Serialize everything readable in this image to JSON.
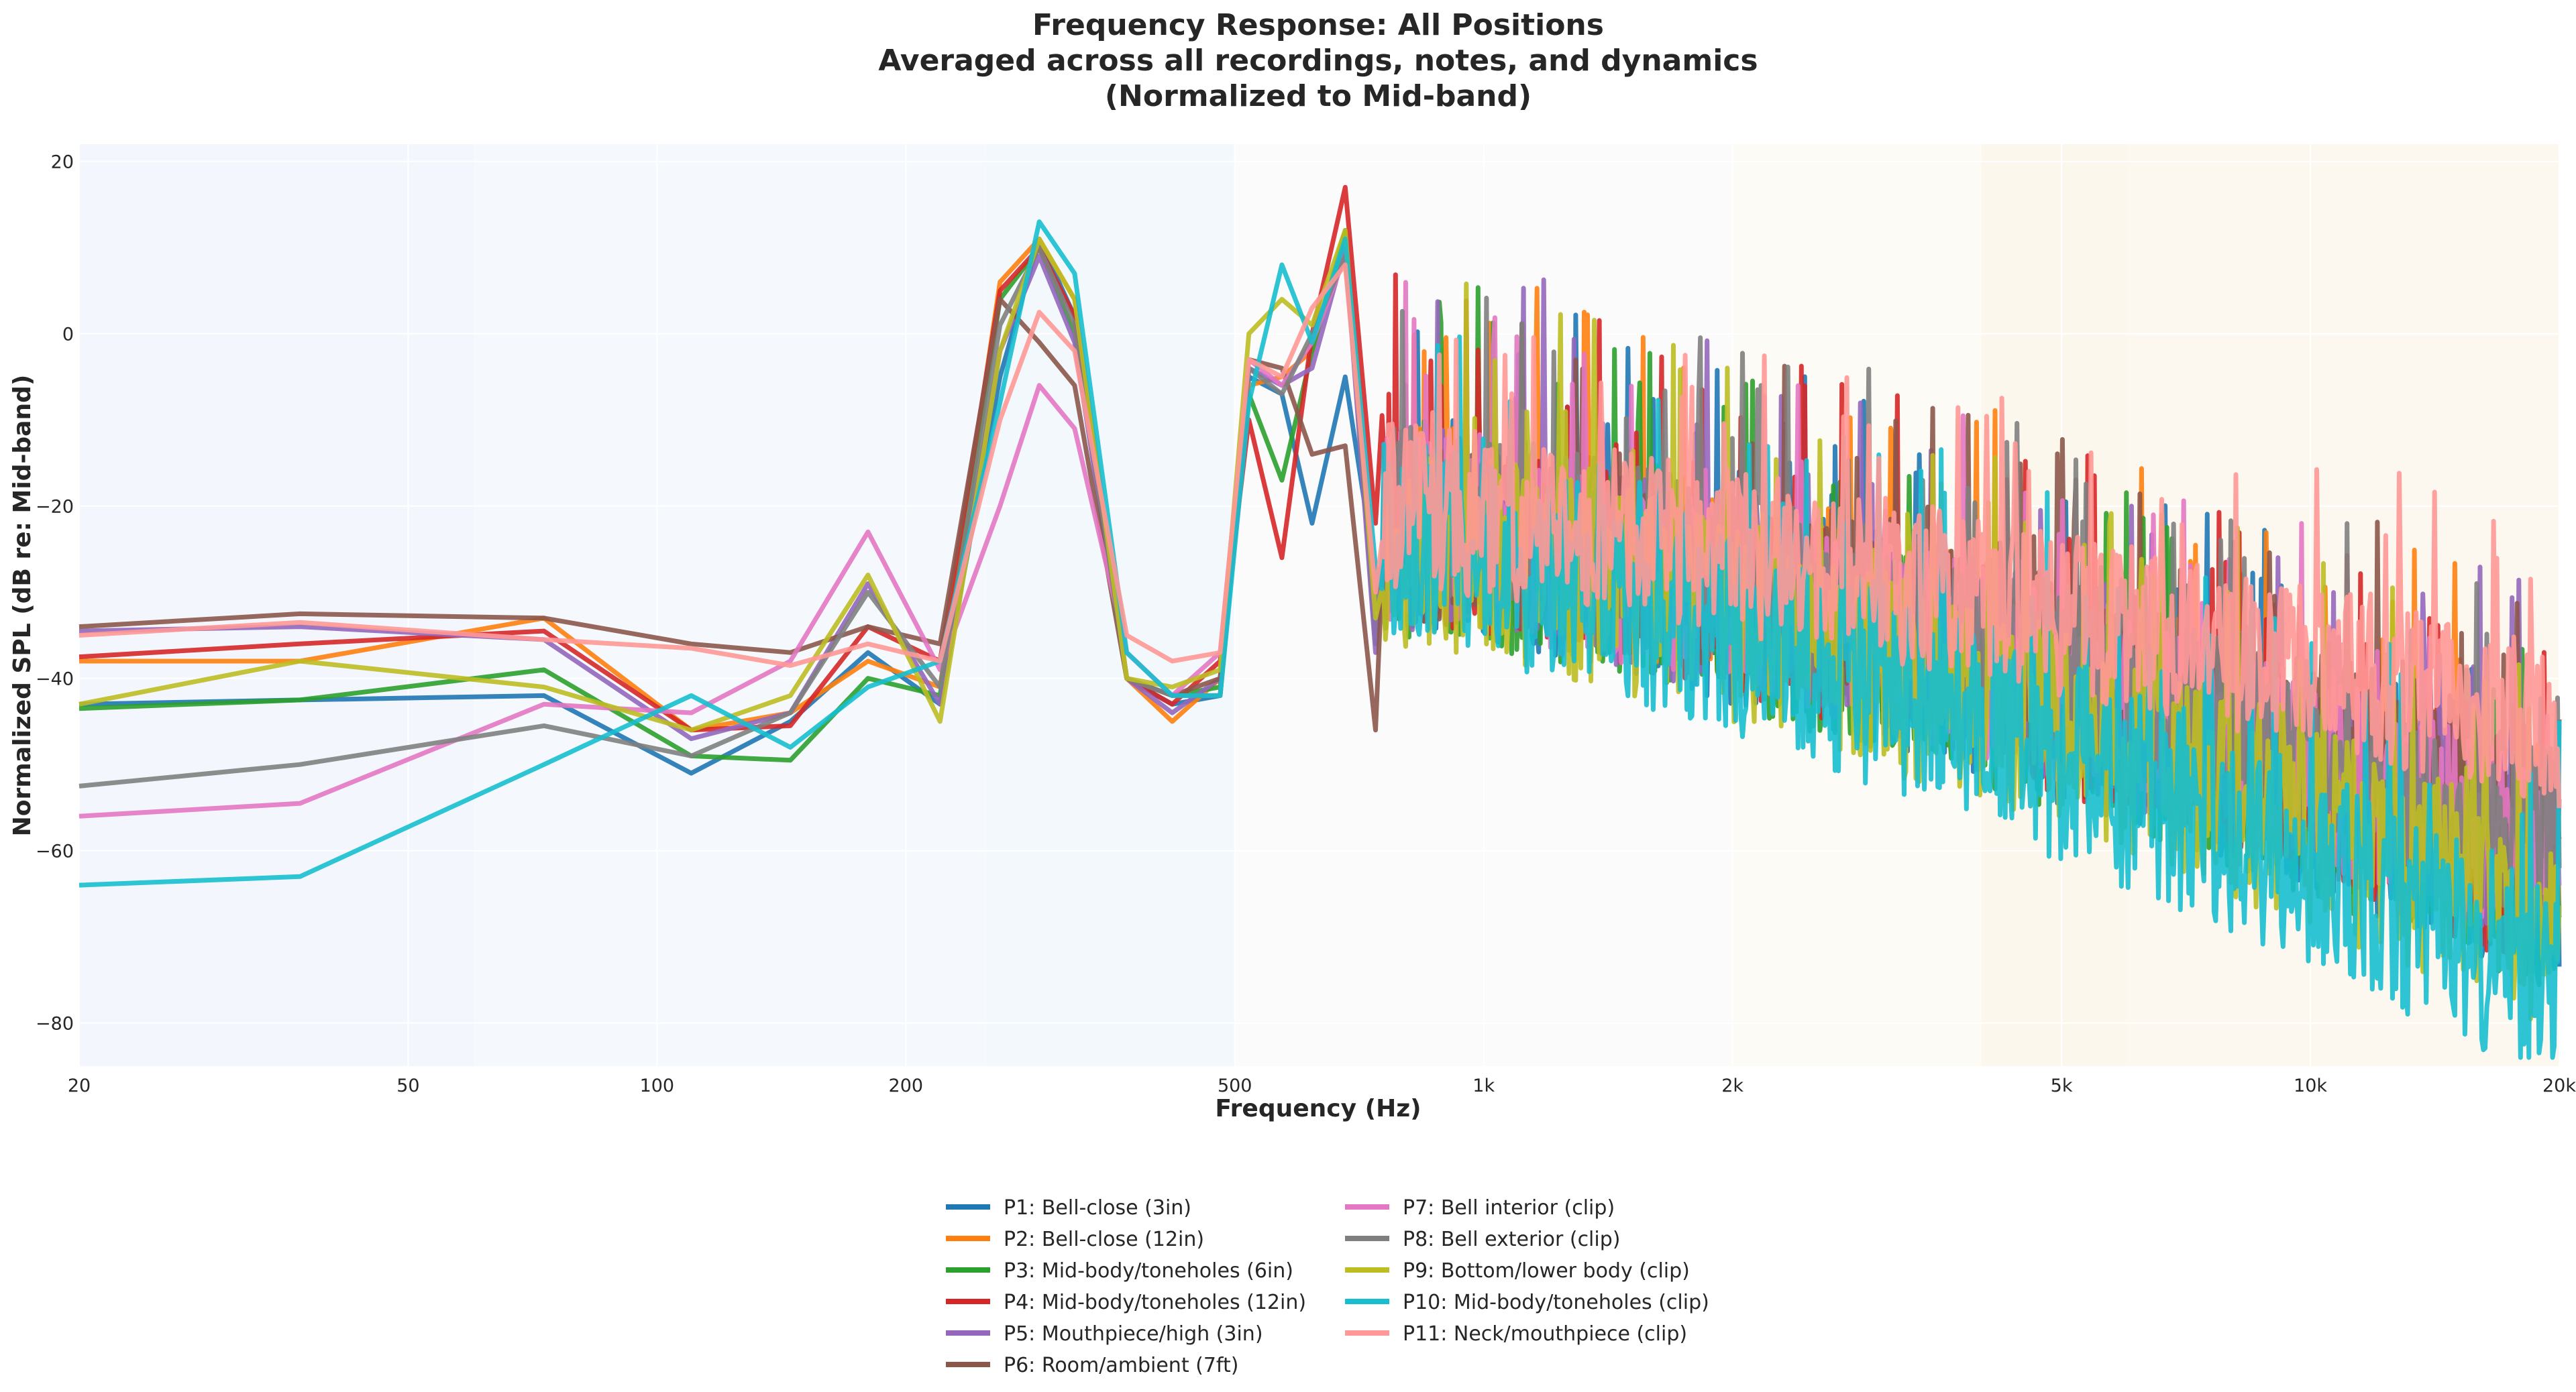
{
  "chart_data": {
    "type": "line",
    "title": [
      "Frequency Response: All Positions",
      "Averaged across all recordings, notes, and dynamics",
      "(Normalized to Mid-band)"
    ],
    "xlabel": "Frequency (Hz)",
    "ylabel": "Normalized SPL (dB re: Mid-band)",
    "xscale": "log",
    "xlim": [
      20,
      20000
    ],
    "ylim": [
      -85,
      22
    ],
    "x_ticks": [
      20,
      50,
      100,
      200,
      500,
      1000,
      2000,
      5000,
      10000,
      20000
    ],
    "x_tick_labels": [
      "20",
      "50",
      "100",
      "200",
      "500",
      "1k",
      "2k",
      "5k",
      "10k",
      "20k"
    ],
    "y_ticks": [
      20,
      0,
      -20,
      -40,
      -60,
      -80
    ],
    "y_tick_labels": [
      "20",
      "0",
      "−20",
      "−40",
      "−60",
      "−80"
    ],
    "grid": true,
    "legend_position": "bottom-center",
    "bands": [
      {
        "from": 20,
        "to": 60,
        "color": "#eaf1fb"
      },
      {
        "from": 60,
        "to": 250,
        "color": "#edf4fc"
      },
      {
        "from": 250,
        "to": 500,
        "color": "#eaf3fc"
      },
      {
        "from": 500,
        "to": 2000,
        "color": "#f7f7f7"
      },
      {
        "from": 2000,
        "to": 4000,
        "color": "#fbf8ef"
      },
      {
        "from": 4000,
        "to": 6000,
        "color": "#f8f0dd"
      },
      {
        "from": 6000,
        "to": 20000,
        "color": "#f9f2e2"
      }
    ],
    "series": [
      {
        "name": "P1: Bell-close (3in)",
        "color": "#1f77b4",
        "x": [
          20,
          37,
          73,
          110,
          145,
          180,
          220,
          260,
          290,
          320,
          370,
          420,
          480,
          520,
          570,
          620,
          680,
          740
        ],
        "y": [
          -43,
          -42.5,
          -42,
          -51,
          -45,
          -37,
          -43,
          -5,
          11,
          2,
          -40,
          -43,
          -42,
          -5,
          -7,
          -22,
          -5,
          -28
        ],
        "hf_start": 750,
        "hf_level": -22,
        "hf_slope": -13,
        "hf_noise": 14,
        "seed": 11
      },
      {
        "name": "P2: Bell-close (12in)",
        "color": "#ff7f0e",
        "x": [
          20,
          37,
          73,
          110,
          145,
          180,
          220,
          260,
          290,
          320,
          370,
          420,
          480,
          520,
          570,
          620,
          680,
          740
        ],
        "y": [
          -38,
          -38,
          -33,
          -46,
          -44,
          -38,
          -41,
          6,
          11,
          4,
          -40,
          -45,
          -40,
          -6,
          -5,
          -2,
          12,
          -30
        ],
        "hf_start": 750,
        "hf_level": -20,
        "hf_slope": -12,
        "hf_noise": 14,
        "seed": 23
      },
      {
        "name": "P3: Mid-body/toneholes (6in)",
        "color": "#2ca02c",
        "x": [
          20,
          37,
          73,
          110,
          145,
          180,
          220,
          260,
          290,
          320,
          370,
          420,
          480,
          520,
          570,
          620,
          680,
          740
        ],
        "y": [
          -43.5,
          -42.5,
          -39,
          -49,
          -49.5,
          -40,
          -42,
          4,
          10,
          0,
          -40,
          -42,
          -41,
          -7,
          -17,
          -2,
          12,
          -36
        ],
        "hf_start": 750,
        "hf_level": -22,
        "hf_slope": -13,
        "hf_noise": 15,
        "seed": 37
      },
      {
        "name": "P4: Mid-body/toneholes (12in)",
        "color": "#d62728",
        "x": [
          20,
          37,
          73,
          110,
          145,
          180,
          220,
          260,
          290,
          320,
          370,
          420,
          480,
          520,
          570,
          620,
          680,
          740
        ],
        "y": [
          -37.5,
          -36,
          -34.5,
          -46,
          -45.5,
          -34,
          -38,
          5,
          10,
          2,
          -40,
          -43,
          -38,
          -10,
          -26,
          0,
          17,
          -22
        ],
        "hf_start": 750,
        "hf_level": -21,
        "hf_slope": -13,
        "hf_noise": 14,
        "seed": 41
      },
      {
        "name": "P5: Mouthpiece/high (3in)",
        "color": "#9467bd",
        "x": [
          20,
          37,
          73,
          110,
          145,
          180,
          220,
          260,
          290,
          320,
          370,
          420,
          480,
          520,
          570,
          620,
          680,
          740
        ],
        "y": [
          -34.5,
          -34,
          -35.5,
          -47,
          -44,
          -29,
          -43,
          -2,
          9,
          -1,
          -40,
          -44,
          -40,
          -4,
          -6,
          -4,
          10,
          -37
        ],
        "hf_start": 750,
        "hf_level": -21,
        "hf_slope": -12,
        "hf_noise": 15,
        "seed": 53
      },
      {
        "name": "P6: Room/ambient (7ft)",
        "color": "#8c564b",
        "x": [
          20,
          37,
          73,
          110,
          145,
          180,
          220,
          260,
          290,
          320,
          370,
          420,
          480,
          520,
          570,
          620,
          680,
          740
        ],
        "y": [
          -34,
          -32.5,
          -33,
          -36,
          -37,
          -34,
          -36,
          4,
          -1,
          -6,
          -40,
          -42,
          -40,
          -3,
          -4,
          -14,
          -13,
          -46
        ],
        "hf_start": 750,
        "hf_level": -22,
        "hf_slope": -10,
        "hf_noise": 13,
        "seed": 67
      },
      {
        "name": "P7: Bell interior (clip)",
        "color": "#e377c2",
        "x": [
          20,
          37,
          73,
          110,
          145,
          180,
          220,
          260,
          290,
          320,
          370,
          420,
          480,
          520,
          570,
          620,
          680,
          740
        ],
        "y": [
          -56,
          -54.5,
          -43,
          -44,
          -38,
          -23,
          -39,
          -20,
          -6,
          -11,
          -37,
          -42,
          -37,
          -3,
          -6,
          -1,
          9,
          -30
        ],
        "hf_start": 750,
        "hf_level": -21,
        "hf_slope": -12,
        "hf_noise": 14,
        "seed": 71
      },
      {
        "name": "P8: Bell exterior (clip)",
        "color": "#7f7f7f",
        "x": [
          20,
          37,
          73,
          110,
          145,
          180,
          220,
          260,
          290,
          320,
          370,
          420,
          480,
          520,
          570,
          620,
          680,
          740
        ],
        "y": [
          -52.5,
          -50,
          -45.5,
          -49,
          -44,
          -30,
          -41,
          1,
          10,
          1,
          -40,
          -42,
          -42,
          -4,
          -7,
          0,
          9,
          -32
        ],
        "hf_start": 750,
        "hf_level": -20,
        "hf_slope": -12,
        "hf_noise": 14,
        "seed": 83
      },
      {
        "name": "P9: Bottom/lower body (clip)",
        "color": "#bcbd22",
        "x": [
          20,
          37,
          73,
          110,
          145,
          180,
          220,
          260,
          290,
          320,
          370,
          420,
          480,
          520,
          570,
          620,
          680,
          740
        ],
        "y": [
          -43,
          -38,
          -41,
          -46,
          -42,
          -28,
          -45,
          -2,
          11,
          4,
          -40,
          -41,
          -39,
          0,
          4,
          1,
          12,
          -33
        ],
        "hf_start": 750,
        "hf_level": -23,
        "hf_slope": -14,
        "hf_noise": 15,
        "seed": 97
      },
      {
        "name": "P10: Mid-body/toneholes (clip)",
        "color": "#17becf",
        "x": [
          20,
          37,
          73,
          110,
          145,
          180,
          220,
          260,
          290,
          320,
          370,
          420,
          480,
          520,
          570,
          620,
          680,
          740
        ],
        "y": [
          -64,
          -63,
          -50,
          -42,
          -48,
          -41,
          -38,
          -8,
          13,
          7,
          -37,
          -42,
          -42,
          -8,
          8,
          -1,
          11,
          -27
        ],
        "hf_start": 750,
        "hf_level": -23,
        "hf_slope": -16,
        "hf_noise": 15,
        "seed": 101
      },
      {
        "name": "P11: Neck/mouthpiece (clip)",
        "color": "#ff9896",
        "x": [
          20,
          37,
          73,
          110,
          145,
          180,
          220,
          260,
          290,
          320,
          370,
          420,
          480,
          520,
          570,
          620,
          680,
          740
        ],
        "y": [
          -35,
          -33.5,
          -35.5,
          -36.5,
          -38.5,
          -36,
          -38,
          -10,
          2.5,
          -2,
          -35,
          -38,
          -37,
          -3,
          -5,
          3,
          8,
          -30
        ],
        "hf_start": 750,
        "hf_level": -19,
        "hf_slope": -8,
        "hf_noise": 12,
        "seed": 113
      }
    ]
  }
}
